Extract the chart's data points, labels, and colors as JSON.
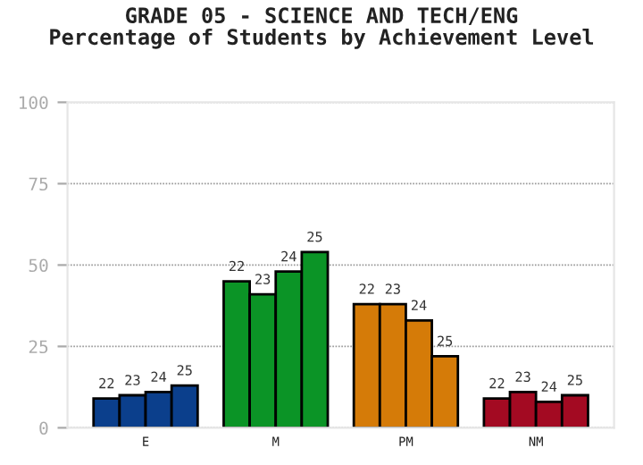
{
  "chart_data": {
    "type": "bar",
    "title": "GRADE 05 - SCIENCE AND TECH/ENG\nPercentage of Students by Achievement Level",
    "categories": [
      "E",
      "M",
      "PM",
      "NM"
    ],
    "series": [
      {
        "name": "22",
        "colors": [
          "#0b3f8c",
          "#0b9426",
          "#d57b08",
          "#a30a22"
        ],
        "values": [
          9,
          45,
          38,
          9
        ]
      },
      {
        "name": "23",
        "colors": [
          "#0b3f8c",
          "#0b9426",
          "#d57b08",
          "#a30a22"
        ],
        "values": [
          10,
          41,
          38,
          11
        ]
      },
      {
        "name": "24",
        "colors": [
          "#0b3f8c",
          "#0b9426",
          "#d57b08",
          "#a30a22"
        ],
        "values": [
          11,
          48,
          33,
          8
        ]
      },
      {
        "name": "25",
        "colors": [
          "#0b3f8c",
          "#0b9426",
          "#d57b08",
          "#a30a22"
        ],
        "values": [
          13,
          54,
          22,
          10
        ]
      }
    ],
    "ylim": [
      0,
      100
    ],
    "yticks": [
      0,
      25,
      50,
      75,
      100
    ],
    "grid": "y",
    "legend": false
  }
}
